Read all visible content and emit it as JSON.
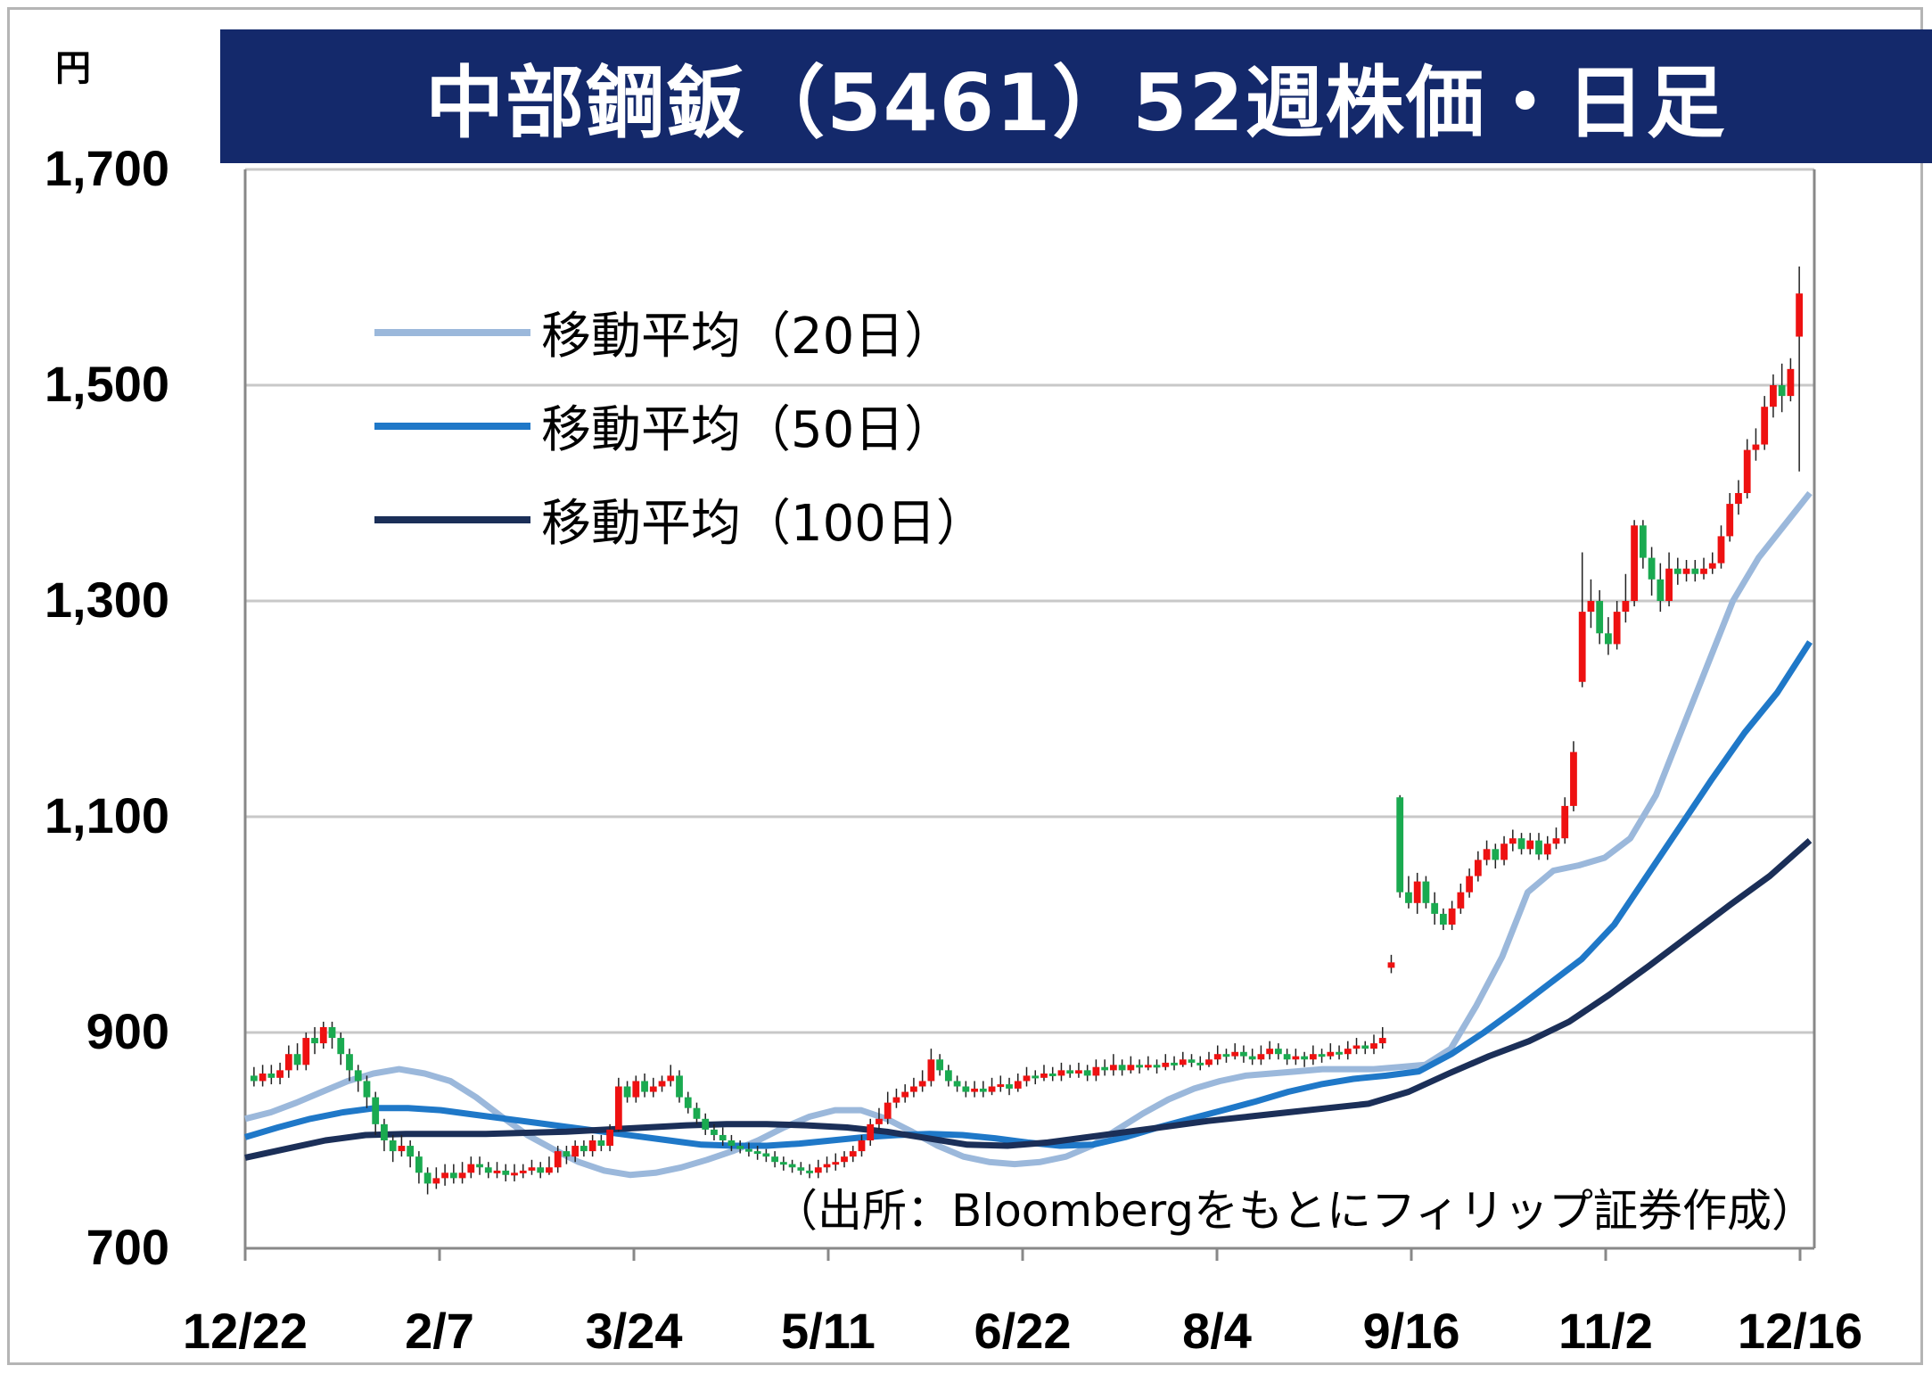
{
  "colors": {
    "title_bg": "#14296b",
    "up": "#ee1111",
    "down": "#1aaa50",
    "ma20": "#9bb8db",
    "ma50": "#1f78c8",
    "ma100": "#1b2f58",
    "grid": "#c8c8c8"
  },
  "title": "中部鋼鈑（5461）52週株価・日足",
  "unit": "円",
  "source_note": "（出所：Bloombergをもとにフィリップ証券作成）",
  "legend": [
    {
      "label": "移動平均（20日）",
      "color_key": "ma20"
    },
    {
      "label": "移動平均（50日）",
      "color_key": "ma50"
    },
    {
      "label": "移動平均（100日）",
      "color_key": "ma100"
    }
  ],
  "chart_data": {
    "type": "candlestick",
    "ylim": [
      700,
      1700
    ],
    "y_ticks": [
      700,
      900,
      1100,
      1300,
      1500,
      1700
    ],
    "y_tick_labels": [
      "700",
      "900",
      "1,100",
      "1,300",
      "1,500",
      "1,700"
    ],
    "x_tick_labels": [
      "12/22",
      "2/7",
      "3/24",
      "5/11",
      "6/22",
      "8/4",
      "9/16",
      "11/2",
      "12/16"
    ],
    "grid": true,
    "legend_position": "top-left",
    "candles": [
      [
        860,
        855,
        868,
        850
      ],
      [
        855,
        862,
        870,
        850
      ],
      [
        862,
        858,
        870,
        852
      ],
      [
        858,
        865,
        872,
        852
      ],
      [
        865,
        880,
        888,
        858
      ],
      [
        880,
        870,
        890,
        865
      ],
      [
        870,
        895,
        900,
        865
      ],
      [
        895,
        890,
        905,
        880
      ],
      [
        890,
        905,
        910,
        885
      ],
      [
        905,
        895,
        910,
        885
      ],
      [
        895,
        880,
        900,
        870
      ],
      [
        880,
        865,
        885,
        855
      ],
      [
        865,
        855,
        870,
        845
      ],
      [
        855,
        840,
        860,
        830
      ],
      [
        840,
        815,
        845,
        805
      ],
      [
        815,
        800,
        820,
        790
      ],
      [
        800,
        790,
        805,
        780
      ],
      [
        790,
        795,
        805,
        785
      ],
      [
        795,
        785,
        800,
        775
      ],
      [
        785,
        770,
        790,
        760
      ],
      [
        770,
        760,
        775,
        750
      ],
      [
        760,
        765,
        775,
        755
      ],
      [
        765,
        770,
        778,
        758
      ],
      [
        770,
        765,
        778,
        760
      ],
      [
        765,
        770,
        780,
        760
      ],
      [
        770,
        778,
        785,
        765
      ],
      [
        778,
        775,
        785,
        768
      ],
      [
        775,
        770,
        780,
        765
      ],
      [
        770,
        772,
        780,
        765
      ],
      [
        772,
        768,
        778,
        762
      ],
      [
        768,
        770,
        778,
        762
      ],
      [
        770,
        772,
        778,
        765
      ],
      [
        772,
        775,
        782,
        768
      ],
      [
        775,
        770,
        780,
        765
      ],
      [
        770,
        775,
        785,
        768
      ],
      [
        775,
        790,
        795,
        770
      ],
      [
        790,
        785,
        795,
        778
      ],
      [
        785,
        795,
        800,
        780
      ],
      [
        795,
        790,
        800,
        785
      ],
      [
        790,
        800,
        805,
        785
      ],
      [
        800,
        795,
        805,
        790
      ],
      [
        795,
        810,
        815,
        790
      ],
      [
        810,
        850,
        858,
        808
      ],
      [
        850,
        840,
        855,
        835
      ],
      [
        840,
        855,
        860,
        835
      ],
      [
        855,
        845,
        862,
        840
      ],
      [
        845,
        850,
        858,
        840
      ],
      [
        850,
        855,
        860,
        845
      ],
      [
        855,
        860,
        870,
        850
      ],
      [
        860,
        840,
        865,
        835
      ],
      [
        840,
        830,
        845,
        825
      ],
      [
        830,
        820,
        835,
        815
      ],
      [
        820,
        810,
        825,
        805
      ],
      [
        810,
        805,
        815,
        800
      ],
      [
        805,
        800,
        812,
        795
      ],
      [
        800,
        795,
        805,
        790
      ],
      [
        795,
        792,
        800,
        788
      ],
      [
        792,
        790,
        798,
        785
      ],
      [
        790,
        788,
        795,
        782
      ],
      [
        788,
        785,
        792,
        780
      ],
      [
        785,
        780,
        790,
        775
      ],
      [
        780,
        778,
        785,
        772
      ],
      [
        778,
        775,
        782,
        770
      ],
      [
        775,
        772,
        780,
        768
      ],
      [
        772,
        770,
        778,
        765
      ],
      [
        770,
        775,
        782,
        765
      ],
      [
        775,
        778,
        785,
        770
      ],
      [
        778,
        780,
        788,
        772
      ],
      [
        780,
        785,
        790,
        775
      ],
      [
        785,
        790,
        795,
        780
      ],
      [
        790,
        800,
        805,
        785
      ],
      [
        800,
        815,
        820,
        795
      ],
      [
        815,
        820,
        830,
        810
      ],
      [
        820,
        835,
        845,
        815
      ],
      [
        835,
        840,
        848,
        830
      ],
      [
        840,
        845,
        852,
        835
      ],
      [
        845,
        850,
        858,
        840
      ],
      [
        850,
        855,
        865,
        845
      ],
      [
        855,
        875,
        885,
        850
      ],
      [
        875,
        865,
        880,
        860
      ],
      [
        865,
        855,
        870,
        850
      ],
      [
        855,
        850,
        860,
        845
      ],
      [
        850,
        845,
        855,
        840
      ],
      [
        845,
        848,
        855,
        840
      ],
      [
        848,
        845,
        855,
        840
      ],
      [
        845,
        850,
        858,
        842
      ],
      [
        850,
        852,
        860,
        845
      ],
      [
        852,
        848,
        858,
        842
      ],
      [
        848,
        855,
        862,
        845
      ],
      [
        855,
        860,
        868,
        850
      ],
      [
        860,
        858,
        865,
        852
      ],
      [
        858,
        862,
        870,
        855
      ],
      [
        862,
        860,
        868,
        855
      ],
      [
        860,
        865,
        872,
        855
      ],
      [
        865,
        862,
        870,
        858
      ],
      [
        862,
        865,
        872,
        858
      ],
      [
        865,
        860,
        870,
        855
      ],
      [
        860,
        868,
        875,
        855
      ],
      [
        868,
        865,
        875,
        860
      ],
      [
        865,
        870,
        880,
        860
      ],
      [
        870,
        865,
        875,
        860
      ],
      [
        865,
        870,
        878,
        862
      ],
      [
        870,
        868,
        875,
        862
      ],
      [
        868,
        870,
        878,
        865
      ],
      [
        870,
        868,
        875,
        862
      ],
      [
        868,
        872,
        880,
        865
      ],
      [
        872,
        870,
        878,
        865
      ],
      [
        870,
        875,
        882,
        868
      ],
      [
        875,
        872,
        880,
        868
      ],
      [
        872,
        870,
        878,
        865
      ],
      [
        870,
        875,
        882,
        868
      ],
      [
        875,
        880,
        888,
        870
      ],
      [
        880,
        878,
        885,
        872
      ],
      [
        878,
        882,
        890,
        875
      ],
      [
        882,
        878,
        888,
        872
      ],
      [
        878,
        875,
        885,
        870
      ],
      [
        875,
        880,
        888,
        870
      ],
      [
        880,
        885,
        892,
        875
      ],
      [
        885,
        880,
        890,
        875
      ],
      [
        880,
        875,
        885,
        870
      ],
      [
        875,
        878,
        885,
        870
      ],
      [
        878,
        875,
        882,
        868
      ],
      [
        875,
        880,
        888,
        870
      ],
      [
        880,
        878,
        885,
        872
      ],
      [
        878,
        882,
        890,
        875
      ],
      [
        882,
        880,
        888,
        875
      ],
      [
        880,
        885,
        892,
        875
      ],
      [
        885,
        888,
        895,
        880
      ],
      [
        888,
        885,
        892,
        880
      ],
      [
        885,
        890,
        898,
        880
      ],
      [
        890,
        895,
        905,
        885
      ],
      [
        960,
        965,
        972,
        955
      ],
      [
        1118,
        1030,
        1120,
        1025
      ],
      [
        1030,
        1020,
        1045,
        1015
      ],
      [
        1020,
        1040,
        1048,
        1010
      ],
      [
        1040,
        1020,
        1045,
        1015
      ],
      [
        1020,
        1010,
        1030,
        1000
      ],
      [
        1010,
        1000,
        1015,
        995
      ],
      [
        1000,
        1015,
        1022,
        995
      ],
      [
        1015,
        1030,
        1038,
        1010
      ],
      [
        1030,
        1045,
        1052,
        1025
      ],
      [
        1045,
        1060,
        1068,
        1040
      ],
      [
        1060,
        1070,
        1078,
        1055
      ],
      [
        1070,
        1060,
        1075,
        1052
      ],
      [
        1060,
        1075,
        1082,
        1055
      ],
      [
        1075,
        1080,
        1088,
        1068
      ],
      [
        1080,
        1070,
        1085,
        1065
      ],
      [
        1070,
        1078,
        1085,
        1065
      ],
      [
        1078,
        1065,
        1085,
        1060
      ],
      [
        1065,
        1075,
        1082,
        1060
      ],
      [
        1075,
        1080,
        1090,
        1070
      ],
      [
        1080,
        1110,
        1118,
        1075
      ],
      [
        1110,
        1160,
        1170,
        1105
      ],
      [
        1225,
        1290,
        1345,
        1220
      ],
      [
        1290,
        1300,
        1320,
        1275
      ],
      [
        1300,
        1270,
        1310,
        1260
      ],
      [
        1270,
        1260,
        1285,
        1250
      ],
      [
        1260,
        1290,
        1300,
        1255
      ],
      [
        1290,
        1300,
        1325,
        1280
      ],
      [
        1300,
        1370,
        1375,
        1295
      ],
      [
        1370,
        1340,
        1375,
        1330
      ],
      [
        1340,
        1320,
        1350,
        1305
      ],
      [
        1320,
        1300,
        1335,
        1290
      ],
      [
        1300,
        1330,
        1345,
        1295
      ],
      [
        1330,
        1325,
        1340,
        1315
      ],
      [
        1325,
        1330,
        1338,
        1318
      ],
      [
        1330,
        1325,
        1338,
        1318
      ],
      [
        1325,
        1330,
        1340,
        1320
      ],
      [
        1330,
        1335,
        1345,
        1325
      ],
      [
        1335,
        1360,
        1370,
        1330
      ],
      [
        1360,
        1390,
        1400,
        1355
      ],
      [
        1390,
        1400,
        1412,
        1380
      ],
      [
        1400,
        1440,
        1450,
        1395
      ],
      [
        1440,
        1445,
        1460,
        1430
      ],
      [
        1445,
        1480,
        1490,
        1440
      ],
      [
        1480,
        1500,
        1510,
        1470
      ],
      [
        1500,
        1490,
        1520,
        1475
      ],
      [
        1490,
        1515,
        1525,
        1485
      ],
      [
        1545,
        1585,
        1610,
        1420
      ]
    ],
    "series": [
      {
        "name": "移動平均（20日）",
        "key": "ma20",
        "values": [
          820,
          826,
          835,
          845,
          855,
          862,
          866,
          862,
          855,
          840,
          822,
          805,
          792,
          780,
          772,
          768,
          770,
          775,
          782,
          790,
          800,
          812,
          822,
          828,
          828,
          820,
          808,
          795,
          785,
          780,
          778,
          780,
          785,
          795,
          810,
          825,
          838,
          848,
          855,
          860,
          862,
          864,
          866,
          866,
          866,
          868,
          870,
          885,
          925,
          970,
          1030,
          1050,
          1055,
          1062,
          1080,
          1120,
          1180,
          1240,
          1300,
          1340,
          1370,
          1400
        ]
      },
      {
        "name": "移動平均（50日）",
        "key": "ma50",
        "values": [
          803,
          812,
          820,
          826,
          830,
          830,
          828,
          824,
          820,
          816,
          812,
          808,
          804,
          800,
          796,
          795,
          795,
          797,
          800,
          803,
          805,
          806,
          805,
          802,
          798,
          795,
          796,
          803,
          812,
          820,
          828,
          836,
          845,
          852,
          857,
          860,
          864,
          880,
          900,
          922,
          945,
          968,
          1000,
          1045,
          1090,
          1135,
          1178,
          1215,
          1262
        ]
      },
      {
        "name": "移動平均（100日）",
        "key": "ma100",
        "values": [
          784,
          792,
          800,
          805,
          806,
          806,
          806,
          807,
          808,
          810,
          812,
          814,
          815,
          815,
          814,
          812,
          808,
          802,
          796,
          795,
          798,
          803,
          808,
          813,
          818,
          822,
          826,
          830,
          834,
          845,
          862,
          878,
          892,
          910,
          935,
          962,
          990,
          1018,
          1045,
          1078
        ]
      }
    ]
  }
}
